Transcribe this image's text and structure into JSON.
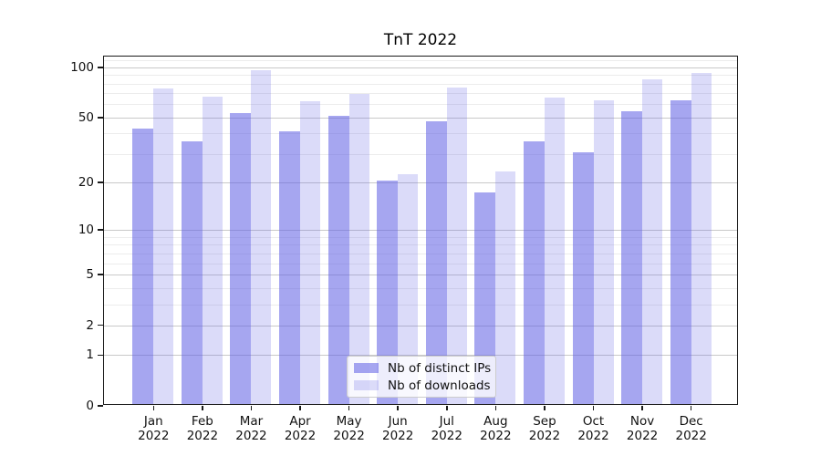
{
  "title": "TnT 2022",
  "chart_data": {
    "type": "bar",
    "title": "TnT 2022",
    "categories": [
      "Jan",
      "Feb",
      "Mar",
      "Apr",
      "May",
      "Jun",
      "Jul",
      "Aug",
      "Sep",
      "Oct",
      "Nov",
      "Dec"
    ],
    "category_second_line": [
      "2022",
      "2022",
      "2022",
      "2022",
      "2022",
      "2022",
      "2022",
      "2022",
      "2022",
      "2022",
      "2022",
      "2022"
    ],
    "series": [
      {
        "name": "Nb of distinct IPs",
        "values": [
          42,
          35,
          52,
          40,
          50,
          20,
          46,
          17,
          35,
          30,
          53,
          62
        ]
      },
      {
        "name": "Nb of downloads",
        "values": [
          73,
          65,
          94,
          61,
          68,
          22,
          74,
          23,
          64,
          62,
          83,
          90
        ]
      }
    ],
    "xlabel": "",
    "ylabel": "",
    "y_axis": {
      "scale": "symlog-log1p",
      "major_tick_labels": [
        "100",
        "50",
        "20",
        "10",
        "5",
        "2",
        "1",
        "0"
      ],
      "major_tick_values": [
        100,
        50,
        20,
        10,
        5,
        2,
        1,
        0
      ],
      "minor_gridline_values": [
        3,
        4,
        6,
        7,
        8,
        9,
        30,
        40,
        60,
        70,
        80,
        90,
        110
      ],
      "ylim": [
        0,
        114
      ]
    },
    "grid": true,
    "legend_position": "lower center inside plot"
  },
  "legend": {
    "items": [
      {
        "label": "Nb of distinct IPs",
        "series": 0
      },
      {
        "label": "Nb of downloads",
        "series": 1
      }
    ]
  },
  "colors": {
    "bar_base": "#5d5de3",
    "ips_bar_alpha": 0.55,
    "downloads_bar_alpha": 0.22,
    "ips_bar_apparent": "#a6a6ef",
    "downloads_bar_apparent": "#dbdbf9",
    "major_gridline": "#c9c9c9",
    "minor_gridline": "#ececec",
    "axis_line": "#1a1a1a",
    "text": "#111111",
    "legend_border": "#cccccc"
  }
}
